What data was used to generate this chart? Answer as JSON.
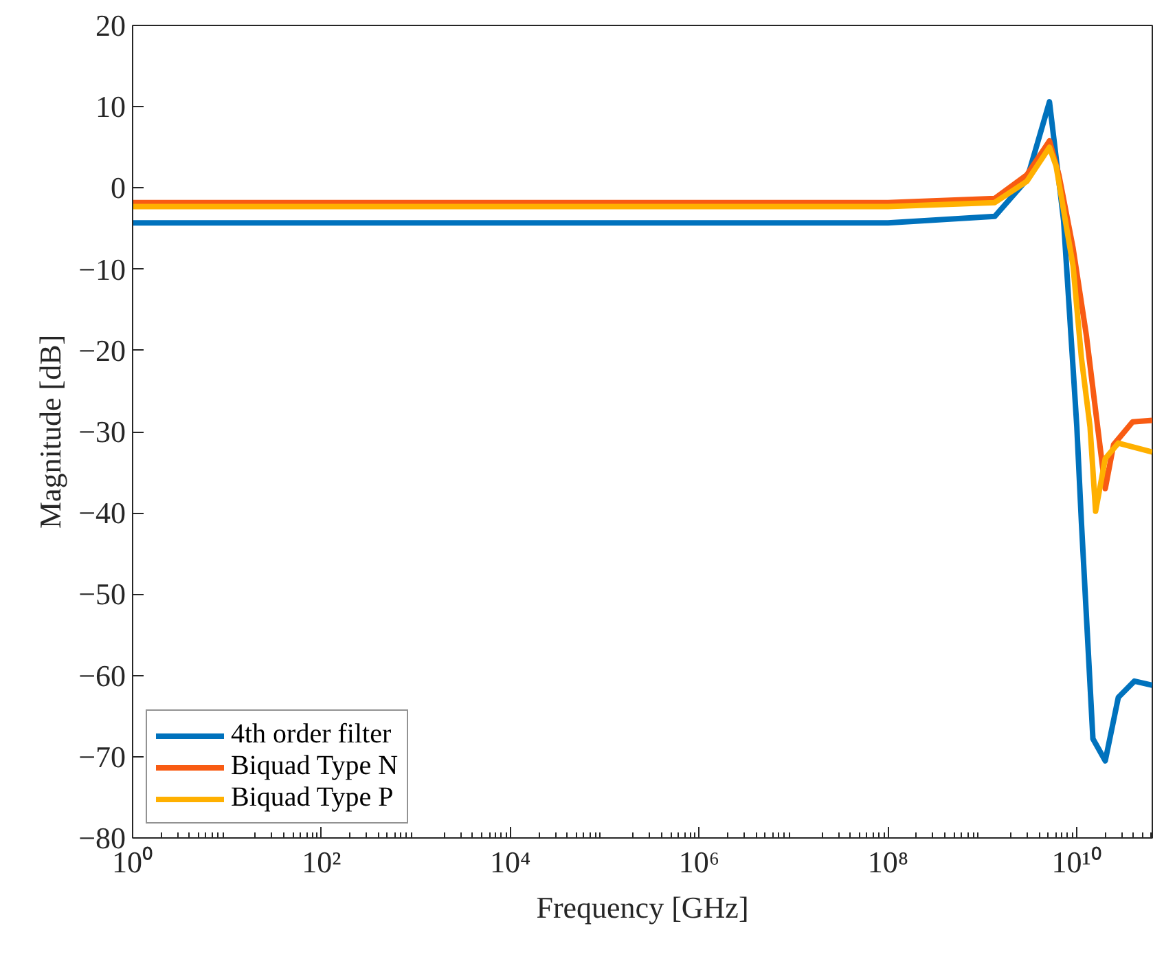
{
  "chart_data": {
    "type": "line",
    "xlabel": "Frequency [GHz]",
    "ylabel": "Magnitude [dB]",
    "log": "x",
    "xlim": [
      1,
      63000000000.0
    ],
    "xticks": [
      {
        "value": 1,
        "label": "10⁰"
      },
      {
        "value": 100,
        "label": "10²"
      },
      {
        "value": 10000,
        "label": "10⁴"
      },
      {
        "value": 1000000,
        "label": "10⁶"
      },
      {
        "value": 100000000,
        "label": "10⁸"
      },
      {
        "value": 10000000000,
        "label": "10¹⁰"
      }
    ],
    "ylim": [
      -80,
      20
    ],
    "yticks": [
      -80,
      -70,
      -60,
      -50,
      -40,
      -30,
      -20,
      -10,
      0,
      10,
      20
    ],
    "grid": false,
    "legend": "bottom left",
    "line_style": "solid",
    "marker": "none",
    "series": [
      {
        "name": "4th order filter",
        "color": "#0072bd",
        "x": [
          1,
          100000000.0,
          1350000000.0,
          2950000000.0,
          5130000000.0,
          7240000000.0,
          10000000000.0,
          11200000000.0,
          14800000000.0,
          20000000000.0,
          27500000000.0,
          40700000000.0,
          63000000000.0
        ],
        "values": [
          -4.3,
          -4.3,
          -3.5,
          1.0,
          10.6,
          -4.0,
          -29.4,
          -41.3,
          -67.8,
          -70.5,
          -62.7,
          -60.7,
          -61.2
        ]
      },
      {
        "name": "Biquad Type N",
        "color": "#f85b13",
        "x": [
          1,
          100000000.0,
          1350000000.0,
          2950000000.0,
          5130000000.0,
          6460000000.0,
          9120000000.0,
          12600000000.0,
          16600000000.0,
          20000000000.0,
          24500000000.0,
          38900000000.0,
          63000000000.0
        ],
        "values": [
          -1.8,
          -1.8,
          -1.3,
          1.6,
          5.8,
          1.6,
          -7.4,
          -18.1,
          -29.4,
          -37.0,
          -31.6,
          -28.8,
          -28.6
        ]
      },
      {
        "name": "Biquad Type P",
        "color": "#ffb000",
        "x": [
          1,
          100000000.0,
          1350000000.0,
          2950000000.0,
          5130000000.0,
          6030000000.0,
          9120000000.0,
          11200000000.0,
          13800000000.0,
          15800000000.0,
          20000000000.0,
          27500000000.0,
          63000000000.0
        ],
        "values": [
          -2.3,
          -2.3,
          -1.8,
          0.8,
          5.0,
          2.7,
          -9.6,
          -21,
          -29.4,
          -39.8,
          -33.3,
          -31.4,
          -32.5
        ]
      }
    ]
  }
}
